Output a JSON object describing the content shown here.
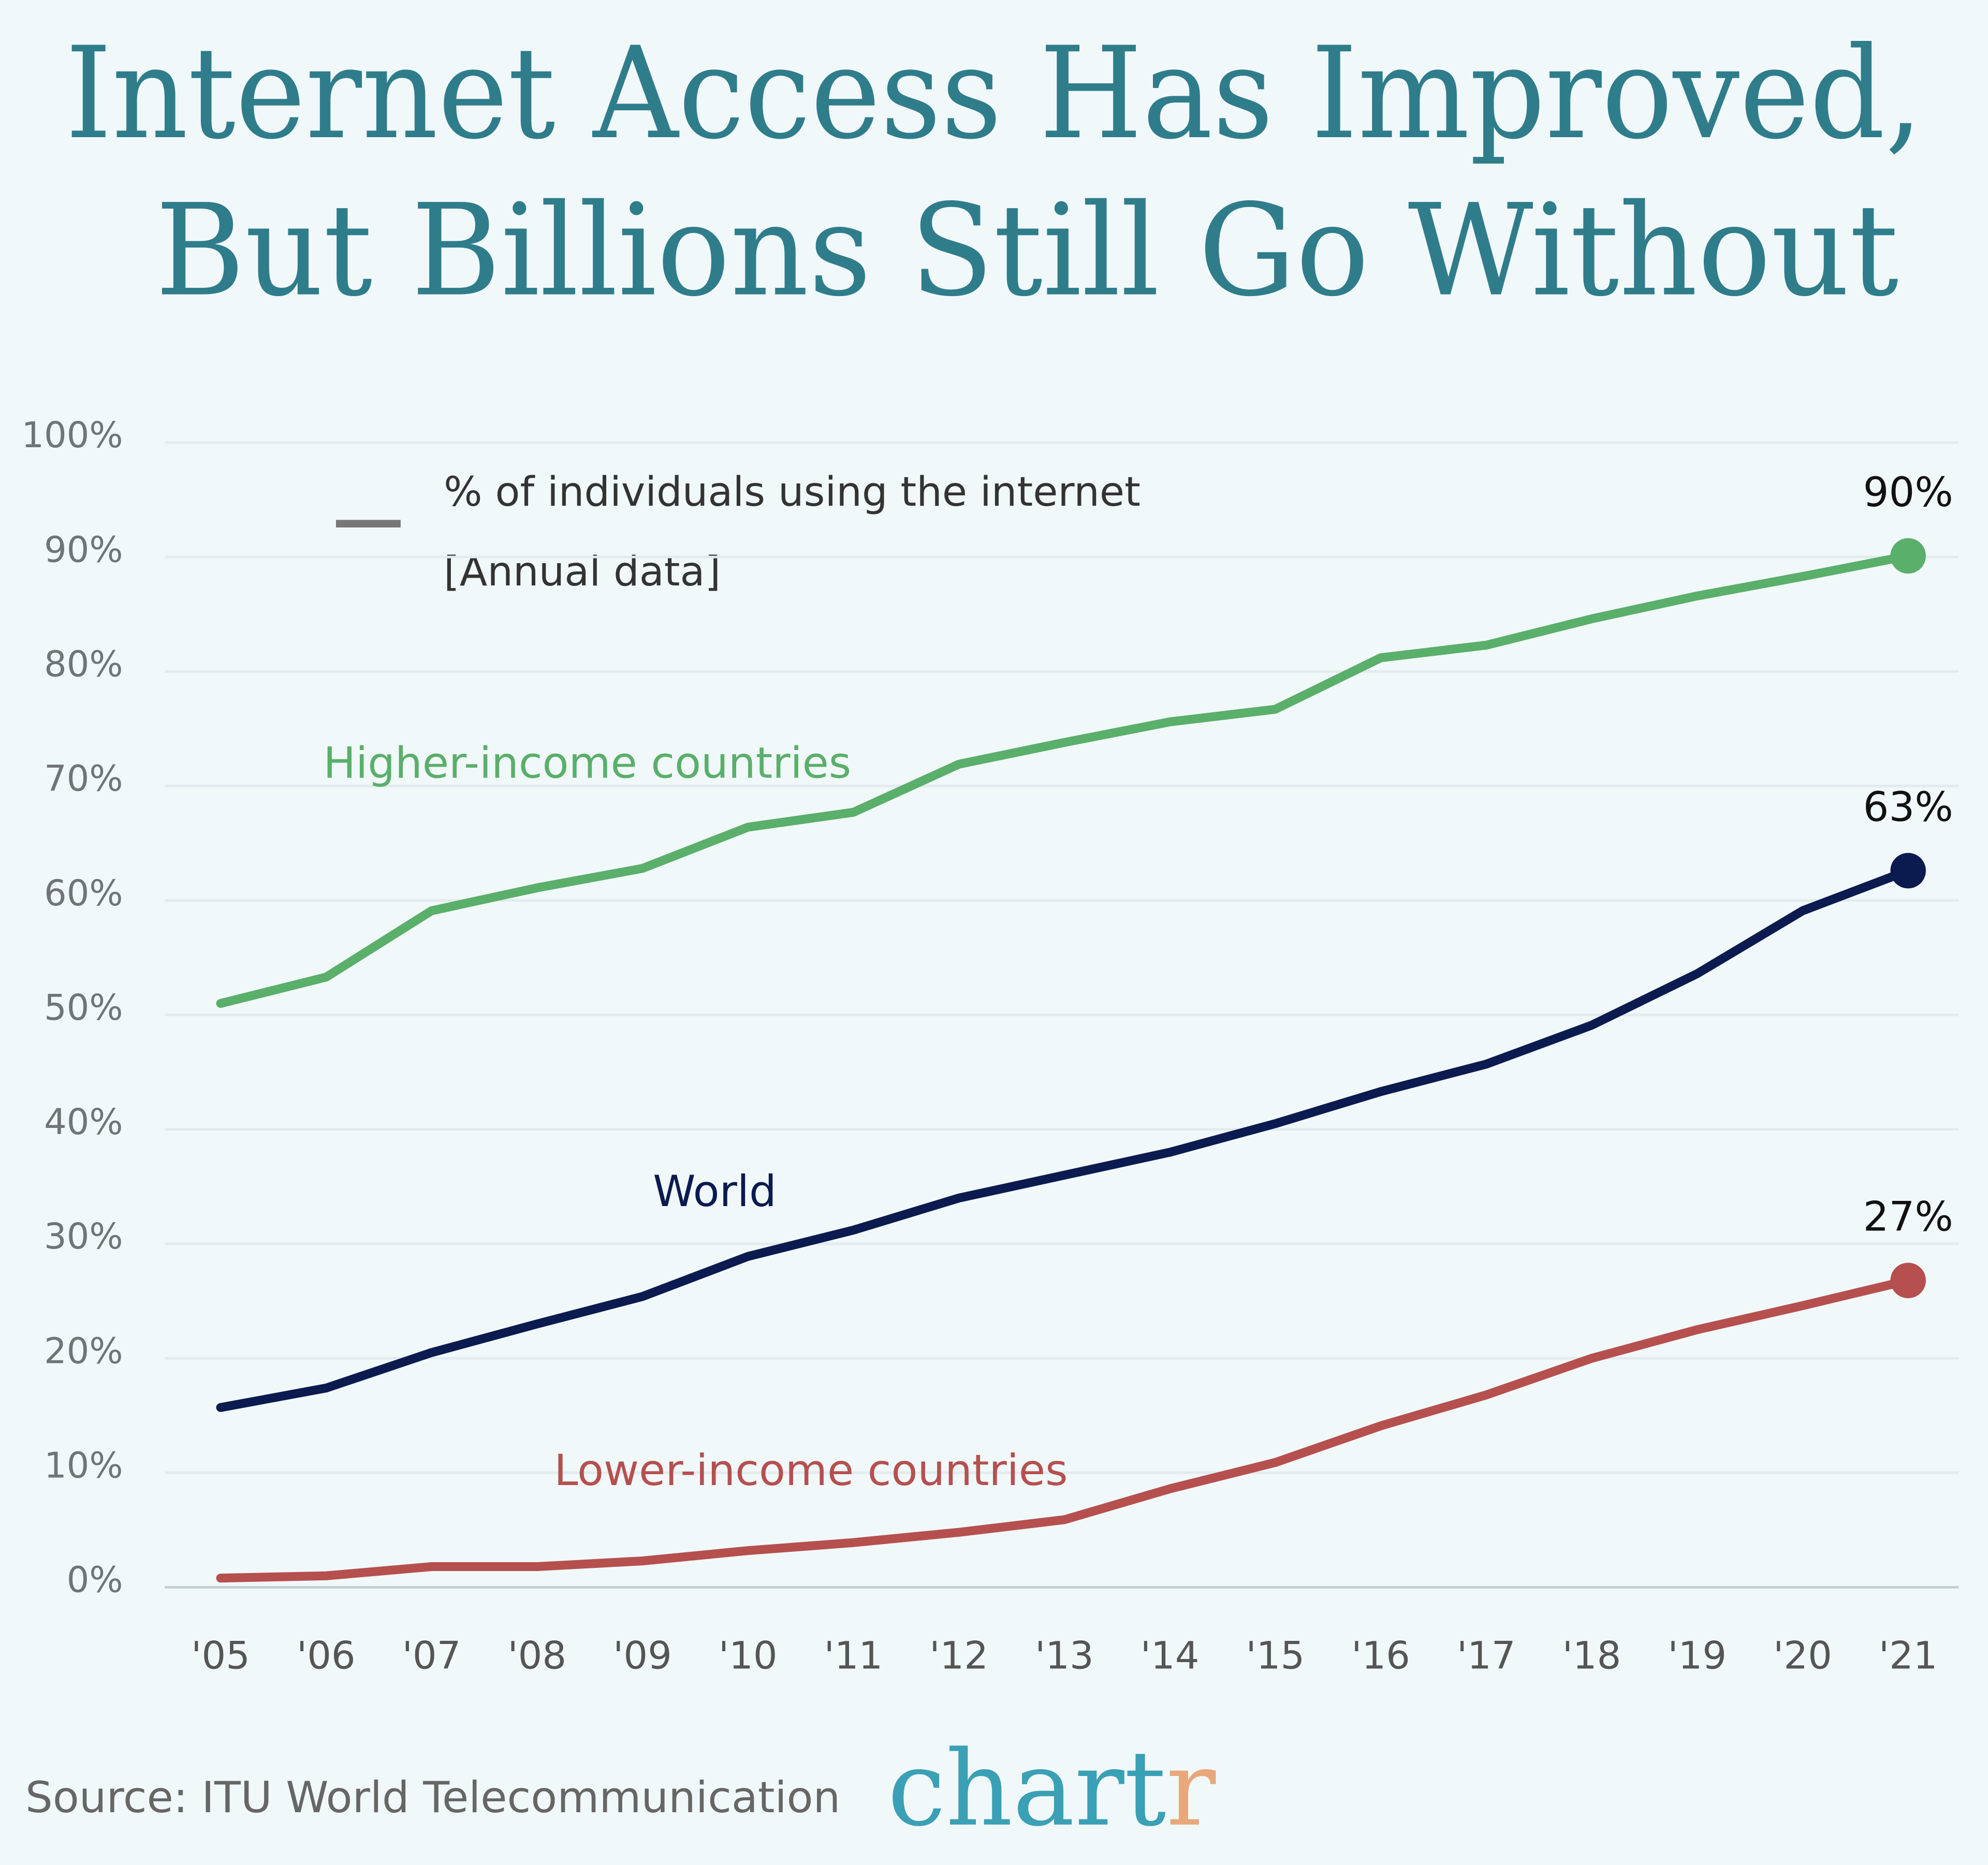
{
  "chart_data": {
    "type": "line",
    "title": [
      "Internet Access Has Improved,",
      "But Billions Still Go Without"
    ],
    "legend_title": "% of individuals using the internet",
    "legend_subtitle": "[Annual data]",
    "legend_color": "#777777",
    "categories": [
      "'05",
      "'06",
      "'07",
      "'08",
      "'09",
      "'10",
      "'11",
      "'12",
      "'13",
      "'14",
      "'15",
      "'16",
      "'17",
      "'18",
      "'19",
      "'20",
      "'21"
    ],
    "series": [
      {
        "name": "Higher-income countries",
        "color": "#5aaf6a",
        "values": [
          51.0,
          53.3,
          59.1,
          61.1,
          62.8,
          66.4,
          67.7,
          71.9,
          73.8,
          75.6,
          76.7,
          81.2,
          82.3,
          84.6,
          86.6,
          88.3,
          90.1
        ],
        "value_labels": [
          null,
          null,
          null,
          null,
          null,
          null,
          null,
          null,
          null,
          null,
          null,
          null,
          null,
          null,
          null,
          null,
          "90%"
        ]
      },
      {
        "name": "World",
        "color": "#0b1a4f",
        "values": [
          15.7,
          17.4,
          20.5,
          23.0,
          25.4,
          28.9,
          31.2,
          34.0,
          36.0,
          38.0,
          40.5,
          43.3,
          45.7,
          49.1,
          53.6,
          59.1,
          62.6
        ],
        "value_labels": [
          null,
          null,
          null,
          null,
          null,
          null,
          null,
          null,
          null,
          null,
          null,
          null,
          null,
          null,
          null,
          null,
          "63%"
        ]
      },
      {
        "name": "Lower-income countries",
        "color": "#b5504f",
        "values": [
          0.8,
          1.0,
          1.8,
          1.8,
          2.3,
          3.2,
          3.9,
          4.8,
          5.9,
          8.6,
          10.9,
          14.1,
          16.8,
          20.0,
          22.5,
          24.6,
          26.8
        ],
        "value_labels": [
          null,
          null,
          null,
          null,
          null,
          null,
          null,
          null,
          null,
          null,
          null,
          null,
          null,
          null,
          null,
          null,
          "27%"
        ]
      }
    ],
    "ylim": [
      0,
      100
    ],
    "yticks": [
      {
        "value": 0,
        "label": "0%"
      },
      {
        "value": 10,
        "label": "10%"
      },
      {
        "value": 20,
        "label": "20%"
      },
      {
        "value": 30,
        "label": "30%"
      },
      {
        "value": 40,
        "label": "40%"
      },
      {
        "value": 50,
        "label": "50%"
      },
      {
        "value": 60,
        "label": "60%"
      },
      {
        "value": 70,
        "label": "70%"
      },
      {
        "value": 80,
        "label": "80%"
      },
      {
        "value": 90,
        "label": "90%"
      },
      {
        "value": 100,
        "label": "100%"
      }
    ],
    "grid": true,
    "source": "Source: ITU World Telecommunication",
    "brand": {
      "text": "chart",
      "accent": "r",
      "accent_color": "#e8a87c"
    }
  }
}
